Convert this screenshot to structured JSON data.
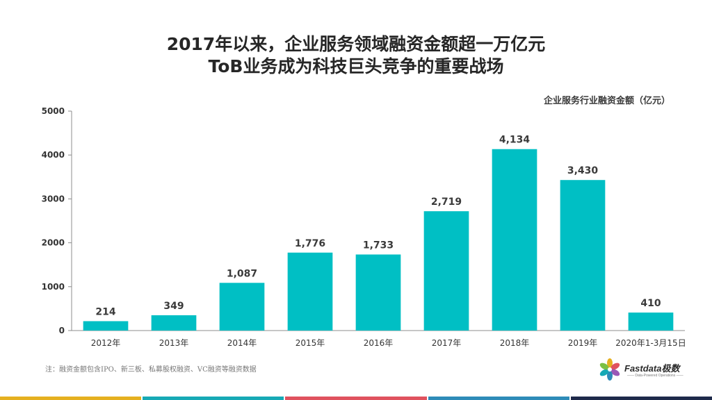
{
  "title_line1": "2017年以来，企业服务领域融资金额超一万亿元",
  "title_line2": "ToB业务成为科技巨头竞争的重要战场",
  "note": "注：融资金额包含IPO、新三板、私募股权融资、VC融资等融资数据",
  "logo": {
    "brand": "Fastdata极数",
    "tagline": "—— Data-Powered Operations ——"
  },
  "colors": {
    "bar": "#00BFC4",
    "axis": "#8c8c8c",
    "footer": [
      "#E5B020",
      "#16A9B5",
      "#E0525E",
      "#2E8BB8",
      "#1E2A4A"
    ]
  },
  "chart_data": {
    "type": "bar",
    "unit_label": "企业服务行业融资金额（亿元）",
    "categories": [
      "2012年",
      "2013年",
      "2014年",
      "2015年",
      "2016年",
      "2017年",
      "2018年",
      "2019年",
      "2020年1-3月15日"
    ],
    "values": [
      214,
      349,
      1087,
      1776,
      1733,
      2719,
      4134,
      3430,
      410
    ],
    "value_labels": [
      "214",
      "349",
      "1,087",
      "1,776",
      "1,733",
      "2,719",
      "4,134",
      "3,430",
      "410"
    ],
    "ylim": [
      0,
      5000
    ],
    "yticks": [
      "0",
      "1000",
      "2000",
      "3000",
      "4000",
      "5000"
    ],
    "grid": false,
    "legend": "none"
  }
}
